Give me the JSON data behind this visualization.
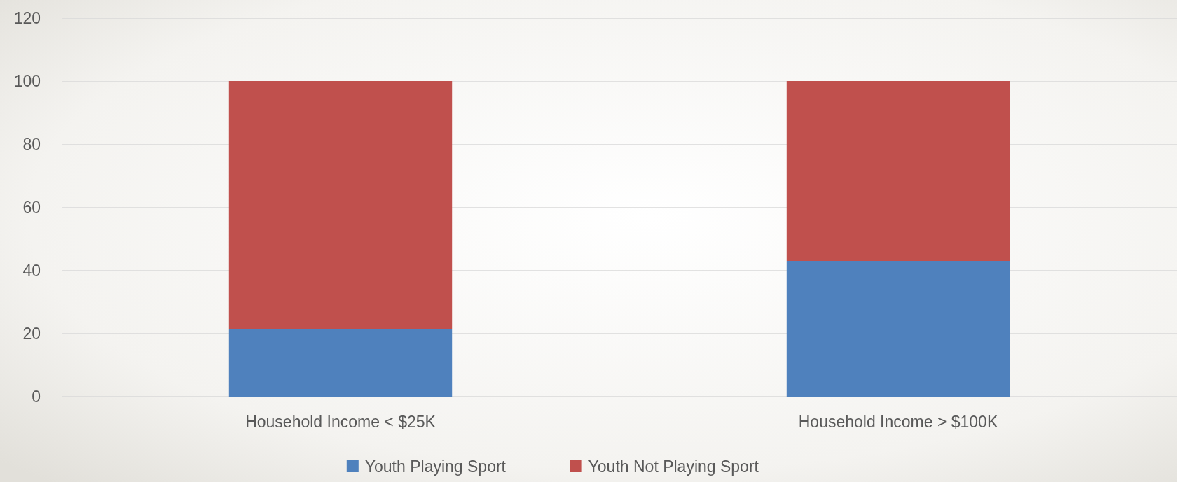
{
  "chart_data": {
    "type": "bar",
    "stacked": true,
    "categories": [
      "Household Income < $25K",
      "Household Income > $100K"
    ],
    "series": [
      {
        "name": "Youth Playing Sport",
        "color": "#4f81bd",
        "values": [
          21.5,
          43
        ]
      },
      {
        "name": "Youth Not Playing Sport",
        "color": "#c0504d",
        "values": [
          78.5,
          57
        ]
      }
    ],
    "ylim": [
      0,
      120
    ],
    "yticks": [
      0,
      20,
      40,
      60,
      80,
      100,
      120
    ],
    "grid": "y",
    "legend": "bottom"
  }
}
